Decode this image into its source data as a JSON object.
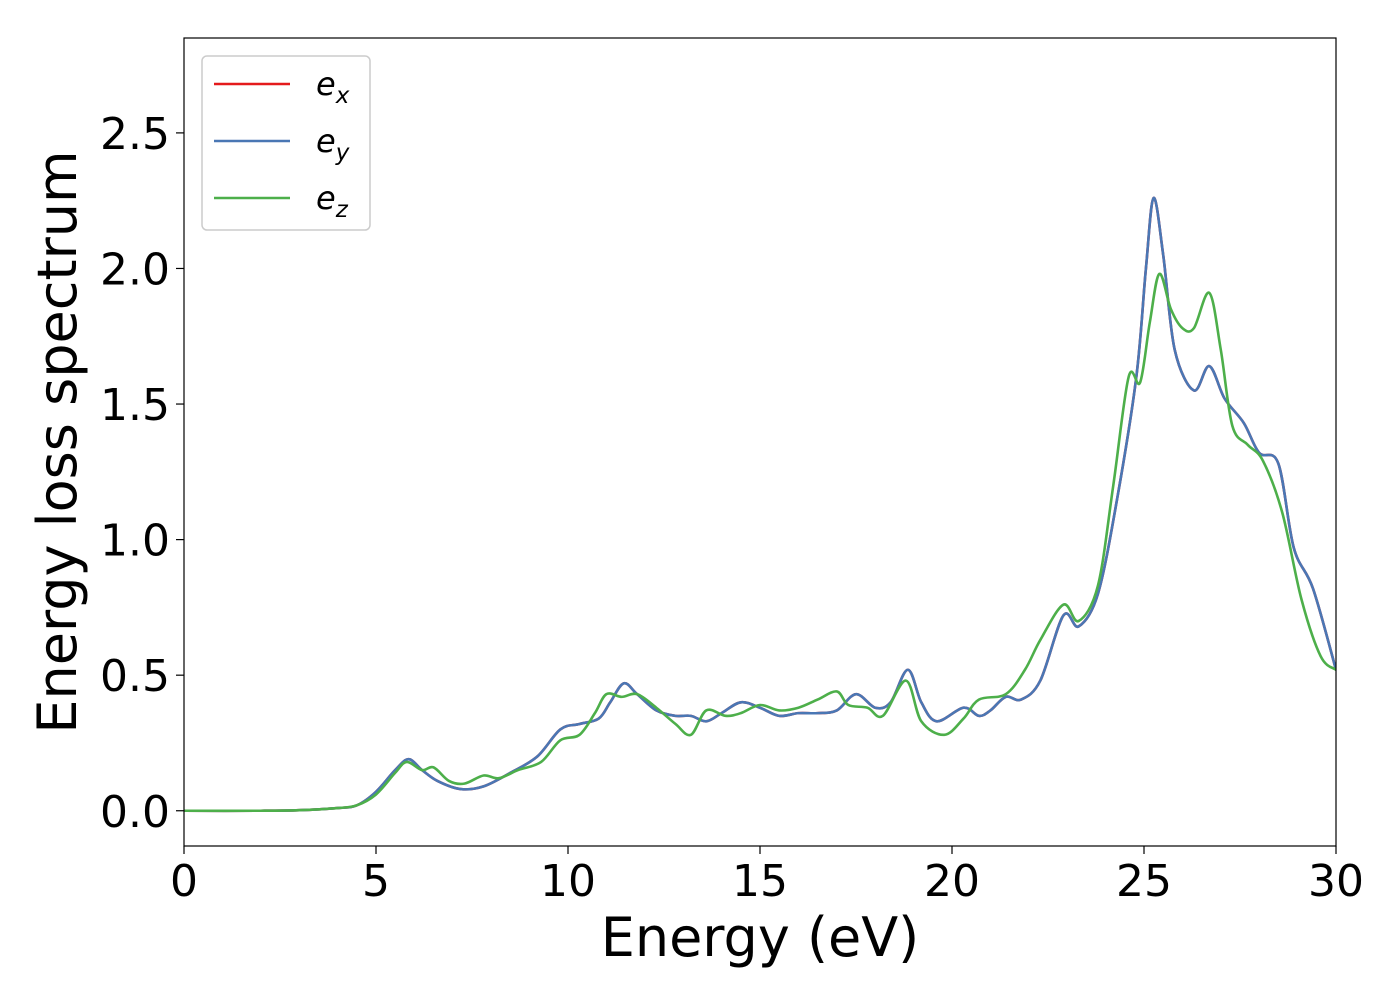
{
  "chart_data": {
    "type": "line",
    "title": "",
    "xlabel": "Energy (eV)",
    "ylabel": "Energy loss spectrum",
    "xlim": [
      0,
      30
    ],
    "ylim": [
      -0.13,
      2.85
    ],
    "xticks": [
      0,
      5,
      10,
      15,
      20,
      25,
      30
    ],
    "xtick_labels": [
      "0",
      "5",
      "10",
      "15",
      "20",
      "25",
      "30"
    ],
    "yticks": [
      0.0,
      0.5,
      1.0,
      1.5,
      2.0,
      2.5
    ],
    "ytick_labels": [
      "0.0",
      "0.5",
      "1.0",
      "1.5",
      "2.0",
      "2.5"
    ],
    "grid": false,
    "legend_position": "top-left",
    "series": [
      {
        "name": "e",
        "subscript": "x",
        "color": "#e41a1c",
        "points": [
          [
            0,
            0.0
          ],
          [
            2,
            0.0
          ],
          [
            3,
            0.002
          ],
          [
            4,
            0.01
          ],
          [
            4.5,
            0.02
          ],
          [
            5,
            0.07
          ],
          [
            5.5,
            0.15
          ],
          [
            5.85,
            0.19
          ],
          [
            6.2,
            0.15
          ],
          [
            6.6,
            0.11
          ],
          [
            7.2,
            0.08
          ],
          [
            7.8,
            0.09
          ],
          [
            8.5,
            0.14
          ],
          [
            9.2,
            0.2
          ],
          [
            9.8,
            0.3
          ],
          [
            10.3,
            0.32
          ],
          [
            10.8,
            0.34
          ],
          [
            11.1,
            0.4
          ],
          [
            11.45,
            0.47
          ],
          [
            11.8,
            0.43
          ],
          [
            12.3,
            0.37
          ],
          [
            12.8,
            0.35
          ],
          [
            13.2,
            0.35
          ],
          [
            13.6,
            0.33
          ],
          [
            14.0,
            0.36
          ],
          [
            14.5,
            0.4
          ],
          [
            15.0,
            0.38
          ],
          [
            15.5,
            0.35
          ],
          [
            16.0,
            0.36
          ],
          [
            16.5,
            0.36
          ],
          [
            17.0,
            0.37
          ],
          [
            17.5,
            0.43
          ],
          [
            18.0,
            0.38
          ],
          [
            18.4,
            0.4
          ],
          [
            18.85,
            0.52
          ],
          [
            19.2,
            0.4
          ],
          [
            19.6,
            0.33
          ],
          [
            20.3,
            0.38
          ],
          [
            20.7,
            0.35
          ],
          [
            21.0,
            0.37
          ],
          [
            21.4,
            0.42
          ],
          [
            21.8,
            0.41
          ],
          [
            22.3,
            0.48
          ],
          [
            22.9,
            0.72
          ],
          [
            23.3,
            0.68
          ],
          [
            23.8,
            0.8
          ],
          [
            24.3,
            1.15
          ],
          [
            24.8,
            1.6
          ],
          [
            25.05,
            2.0
          ],
          [
            25.25,
            2.26
          ],
          [
            25.5,
            2.05
          ],
          [
            25.8,
            1.7
          ],
          [
            26.3,
            1.55
          ],
          [
            26.7,
            1.64
          ],
          [
            27.1,
            1.52
          ],
          [
            27.6,
            1.43
          ],
          [
            28.0,
            1.32
          ],
          [
            28.5,
            1.28
          ],
          [
            28.9,
            0.97
          ],
          [
            29.4,
            0.82
          ],
          [
            30.0,
            0.52
          ]
        ]
      },
      {
        "name": "e",
        "subscript": "y",
        "color": "#4a77b4",
        "points": [
          [
            0,
            0.0
          ],
          [
            2,
            0.0
          ],
          [
            3,
            0.002
          ],
          [
            4,
            0.01
          ],
          [
            4.5,
            0.02
          ],
          [
            5,
            0.07
          ],
          [
            5.5,
            0.15
          ],
          [
            5.85,
            0.19
          ],
          [
            6.2,
            0.15
          ],
          [
            6.6,
            0.11
          ],
          [
            7.2,
            0.08
          ],
          [
            7.8,
            0.09
          ],
          [
            8.5,
            0.14
          ],
          [
            9.2,
            0.2
          ],
          [
            9.8,
            0.3
          ],
          [
            10.3,
            0.32
          ],
          [
            10.8,
            0.34
          ],
          [
            11.1,
            0.4
          ],
          [
            11.45,
            0.47
          ],
          [
            11.8,
            0.43
          ],
          [
            12.3,
            0.37
          ],
          [
            12.8,
            0.35
          ],
          [
            13.2,
            0.35
          ],
          [
            13.6,
            0.33
          ],
          [
            14.0,
            0.36
          ],
          [
            14.5,
            0.4
          ],
          [
            15.0,
            0.38
          ],
          [
            15.5,
            0.35
          ],
          [
            16.0,
            0.36
          ],
          [
            16.5,
            0.36
          ],
          [
            17.0,
            0.37
          ],
          [
            17.5,
            0.43
          ],
          [
            18.0,
            0.38
          ],
          [
            18.4,
            0.4
          ],
          [
            18.85,
            0.52
          ],
          [
            19.2,
            0.4
          ],
          [
            19.6,
            0.33
          ],
          [
            20.3,
            0.38
          ],
          [
            20.7,
            0.35
          ],
          [
            21.0,
            0.37
          ],
          [
            21.4,
            0.42
          ],
          [
            21.8,
            0.41
          ],
          [
            22.3,
            0.48
          ],
          [
            22.9,
            0.72
          ],
          [
            23.3,
            0.68
          ],
          [
            23.8,
            0.8
          ],
          [
            24.3,
            1.15
          ],
          [
            24.8,
            1.6
          ],
          [
            25.05,
            2.0
          ],
          [
            25.25,
            2.26
          ],
          [
            25.5,
            2.05
          ],
          [
            25.8,
            1.7
          ],
          [
            26.3,
            1.55
          ],
          [
            26.7,
            1.64
          ],
          [
            27.1,
            1.52
          ],
          [
            27.6,
            1.43
          ],
          [
            28.0,
            1.32
          ],
          [
            28.5,
            1.28
          ],
          [
            28.9,
            0.97
          ],
          [
            29.4,
            0.82
          ],
          [
            30.0,
            0.52
          ]
        ]
      },
      {
        "name": "e",
        "subscript": "z",
        "color": "#4daf4a",
        "points": [
          [
            0,
            0.0
          ],
          [
            2,
            0.0
          ],
          [
            3,
            0.002
          ],
          [
            4,
            0.01
          ],
          [
            4.5,
            0.02
          ],
          [
            5,
            0.06
          ],
          [
            5.5,
            0.14
          ],
          [
            5.8,
            0.18
          ],
          [
            6.2,
            0.15
          ],
          [
            6.5,
            0.16
          ],
          [
            6.9,
            0.11
          ],
          [
            7.3,
            0.1
          ],
          [
            7.8,
            0.13
          ],
          [
            8.2,
            0.12
          ],
          [
            8.7,
            0.15
          ],
          [
            9.3,
            0.18
          ],
          [
            9.8,
            0.26
          ],
          [
            10.3,
            0.28
          ],
          [
            10.7,
            0.36
          ],
          [
            11.0,
            0.43
          ],
          [
            11.4,
            0.42
          ],
          [
            11.8,
            0.43
          ],
          [
            12.3,
            0.38
          ],
          [
            12.8,
            0.32
          ],
          [
            13.2,
            0.28
          ],
          [
            13.6,
            0.37
          ],
          [
            14.1,
            0.35
          ],
          [
            14.5,
            0.36
          ],
          [
            15.0,
            0.39
          ],
          [
            15.5,
            0.37
          ],
          [
            16.0,
            0.38
          ],
          [
            16.5,
            0.41
          ],
          [
            17.0,
            0.44
          ],
          [
            17.3,
            0.39
          ],
          [
            17.8,
            0.38
          ],
          [
            18.2,
            0.35
          ],
          [
            18.8,
            0.48
          ],
          [
            19.2,
            0.33
          ],
          [
            19.8,
            0.28
          ],
          [
            20.3,
            0.34
          ],
          [
            20.7,
            0.41
          ],
          [
            21.4,
            0.43
          ],
          [
            21.9,
            0.52
          ],
          [
            22.3,
            0.63
          ],
          [
            22.9,
            0.76
          ],
          [
            23.3,
            0.7
          ],
          [
            23.8,
            0.83
          ],
          [
            24.2,
            1.2
          ],
          [
            24.6,
            1.6
          ],
          [
            24.9,
            1.58
          ],
          [
            25.15,
            1.8
          ],
          [
            25.4,
            1.98
          ],
          [
            25.7,
            1.85
          ],
          [
            26.0,
            1.78
          ],
          [
            26.3,
            1.78
          ],
          [
            26.7,
            1.91
          ],
          [
            27.0,
            1.7
          ],
          [
            27.3,
            1.42
          ],
          [
            27.7,
            1.35
          ],
          [
            28.1,
            1.29
          ],
          [
            28.6,
            1.1
          ],
          [
            29.1,
            0.78
          ],
          [
            29.6,
            0.57
          ],
          [
            30.0,
            0.52
          ]
        ]
      }
    ]
  }
}
